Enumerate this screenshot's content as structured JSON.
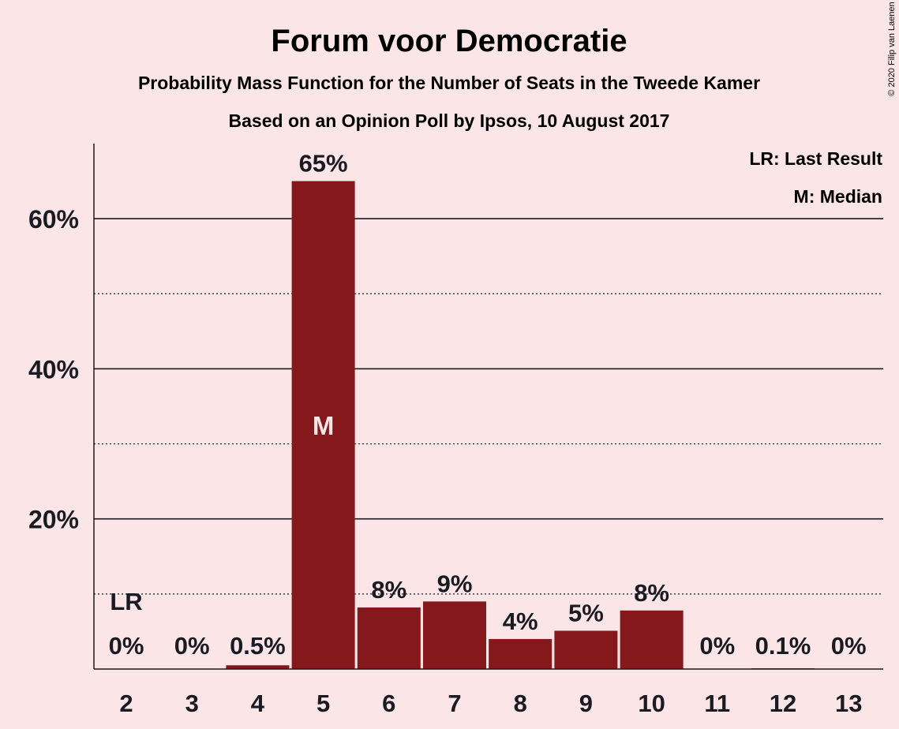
{
  "chart_data": {
    "type": "bar",
    "title": "Forum voor Democratie",
    "subtitle": "Probability Mass Function for the Number of Seats in the Tweede Kamer",
    "subtitle2": "Based on an Opinion Poll by Ipsos, 10 August 2017",
    "copyright": "© 2020 Filip van Laenen",
    "legend": {
      "placement": "top-right",
      "entries": [
        "LR: Last Result",
        "M: Median"
      ]
    },
    "categories": [
      "2",
      "3",
      "4",
      "5",
      "6",
      "7",
      "8",
      "9",
      "10",
      "11",
      "12",
      "13"
    ],
    "values": [
      0,
      0,
      0.5,
      65,
      8.2,
      9,
      4,
      5.1,
      7.8,
      0,
      0.1,
      0
    ],
    "data_labels": [
      "0%",
      "0%",
      "0.5%",
      "65%",
      "8%",
      "9%",
      "4%",
      "5%",
      "8%",
      "0%",
      "0.1%",
      "0%"
    ],
    "last_result": {
      "category": "2",
      "label": "LR"
    },
    "median": {
      "category": "5",
      "label": "M"
    },
    "ylim": [
      0,
      70
    ],
    "yticks": [
      20,
      40,
      60
    ],
    "ytick_labels": [
      "20%",
      "40%",
      "60%"
    ],
    "minor_gridlines": [
      10,
      30,
      50
    ],
    "grid": true,
    "bar_color": "#84181a",
    "background_color": "#fbe5e7",
    "xlabel": "",
    "ylabel": ""
  }
}
